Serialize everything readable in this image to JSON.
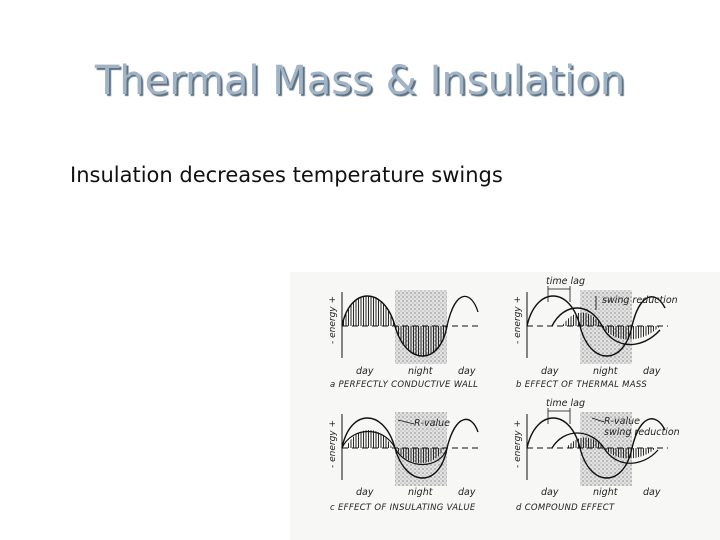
{
  "slide": {
    "title": "Thermal Mass & Insulation",
    "subtitle": "Insulation decreases temperature swings"
  },
  "figure": {
    "y_axis_label": "- energy +",
    "panels": [
      {
        "caption": "a  PERFECTLY CONDUCTIVE WALL",
        "labels": {
          "day1": "day",
          "night": "night",
          "day2": "day"
        }
      },
      {
        "caption": "b  EFFECT OF THERMAL MASS",
        "labels": {
          "day1": "day",
          "night": "night",
          "day2": "day",
          "time_lag": "time lag",
          "swing_reduction": "swing reduction"
        }
      },
      {
        "caption": "c  EFFECT OF INSULATING VALUE",
        "labels": {
          "day1": "day",
          "night": "night",
          "day2": "day",
          "r_value": "R-value"
        }
      },
      {
        "caption": "d  COMPOUND EFFECT",
        "labels": {
          "day1": "day",
          "night": "night",
          "day2": "day",
          "time_lag": "time lag",
          "r_value": "R-value",
          "swing_reduction": "swing reduction"
        }
      }
    ]
  }
}
